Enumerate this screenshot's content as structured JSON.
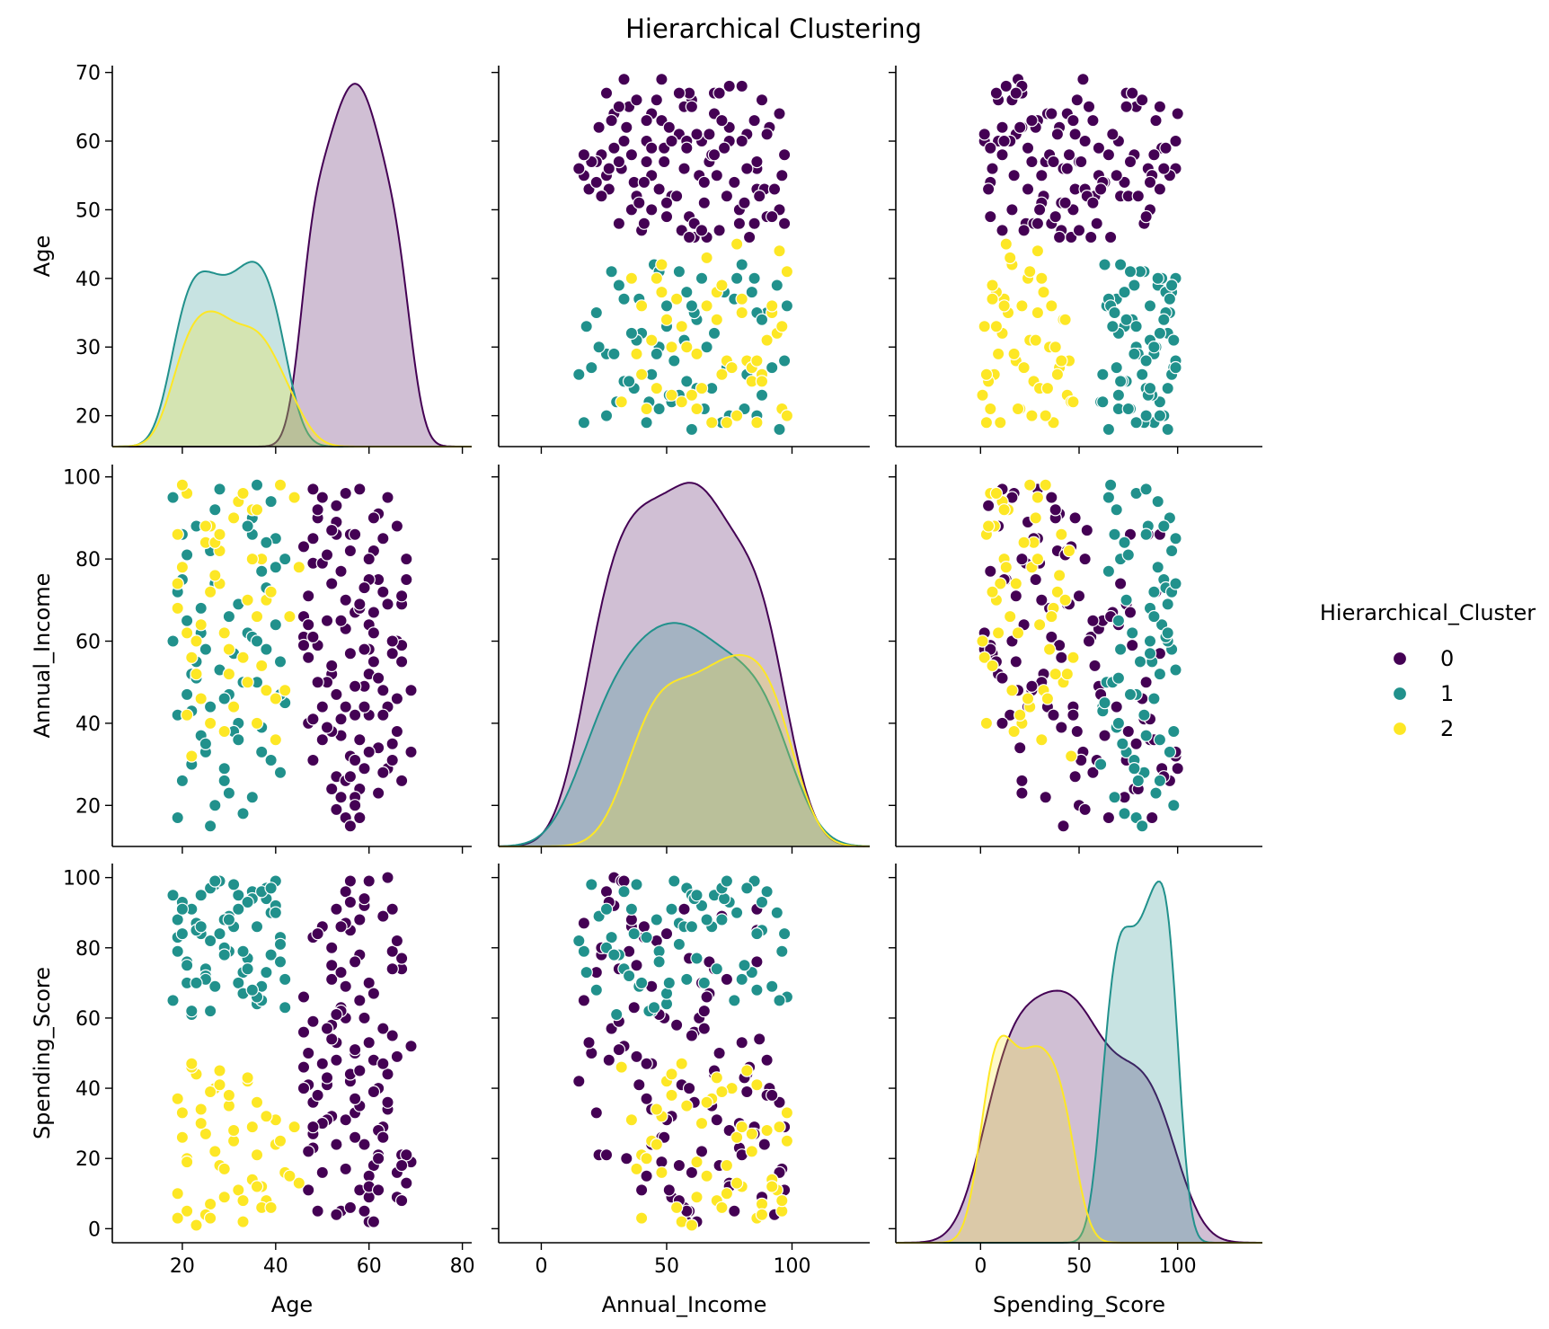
{
  "chart_data": {
    "type": "pairplot",
    "title": "Hierarchical Clustering",
    "variables": [
      "Age",
      "Annual_Income",
      "Spending_Score"
    ],
    "axes": {
      "Age": {
        "label": "Age",
        "x_range": [
          5,
          82
        ],
        "y_range": [
          15.5,
          71
        ],
        "x_ticks": [
          20,
          40,
          60,
          80
        ],
        "y_ticks": [
          20,
          30,
          40,
          50,
          60,
          70
        ]
      },
      "Annual_Income": {
        "label": "Annual_Income",
        "x_range": [
          -17,
          131
        ],
        "y_range": [
          10,
          103
        ],
        "x_ticks": [
          0,
          50,
          100
        ],
        "y_ticks": [
          20,
          40,
          60,
          80,
          100
        ]
      },
      "Spending_Score": {
        "label": "Spending_Score",
        "x_range": [
          -43,
          143
        ],
        "y_range": [
          -4,
          104
        ],
        "x_ticks": [
          0,
          50,
          100
        ],
        "y_ticks": [
          0,
          20,
          40,
          60,
          80,
          100
        ]
      }
    },
    "diag_type": "kde",
    "offdiag_type": "scatter",
    "grid": false,
    "legend": {
      "title": "Hierarchical_Cluster",
      "placement": "right-center"
    },
    "series": [
      {
        "name": "0",
        "color": "#440154",
        "points": [
          [
            55,
            96,
            17
          ],
          [
            56,
            86,
            85
          ],
          [
            54,
            37,
            63
          ],
          [
            61,
            55,
            18
          ],
          [
            67,
            69,
            74
          ],
          [
            63,
            85,
            29
          ],
          [
            48,
            79,
            23
          ],
          [
            52,
            74,
            71
          ],
          [
            60,
            64,
            70
          ],
          [
            64,
            29,
            100
          ],
          [
            49,
            59,
            5
          ],
          [
            58,
            97,
            11
          ],
          [
            62,
            23,
            21
          ],
          [
            57,
            67,
            76
          ],
          [
            47,
            56,
            41
          ],
          [
            66,
            60,
            16
          ],
          [
            50,
            44,
            47
          ],
          [
            53,
            27,
            48
          ],
          [
            56,
            32,
            99
          ],
          [
            58,
            24,
            78
          ],
          [
            68,
            75,
            13
          ],
          [
            55,
            17,
            87
          ],
          [
            52,
            52,
            32
          ],
          [
            60,
            42,
            15
          ],
          [
            65,
            57,
            91
          ],
          [
            59,
            49,
            60
          ],
          [
            67,
            26,
            21
          ],
          [
            57,
            22,
            33
          ],
          [
            61,
            67,
            67
          ],
          [
            53,
            86,
            91
          ],
          [
            47,
            40,
            11
          ],
          [
            51,
            50,
            31
          ],
          [
            46,
            83,
            46
          ],
          [
            64,
            69,
            44
          ],
          [
            69,
            33,
            52
          ],
          [
            62,
            91,
            40
          ],
          [
            56,
            15,
            42
          ],
          [
            48,
            85,
            27
          ],
          [
            52,
            38,
            75
          ],
          [
            59,
            44,
            24
          ],
          [
            46,
            61,
            56
          ],
          [
            69,
            48,
            19
          ],
          [
            60,
            58,
            2
          ],
          [
            54,
            77,
            5
          ],
          [
            50,
            36,
            86
          ],
          [
            63,
            28,
            57
          ],
          [
            58,
            68,
            35
          ],
          [
            66,
            88,
            9
          ],
          [
            55,
            63,
            60
          ],
          [
            48,
            41,
            83
          ],
          [
            57,
            20,
            50
          ],
          [
            61,
            82,
            39
          ],
          [
            53,
            19,
            53
          ],
          [
            67,
            59,
            77
          ],
          [
            50,
            95,
            16
          ],
          [
            64,
            44,
            34
          ],
          [
            47,
            71,
            50
          ],
          [
            59,
            29,
            92
          ],
          [
            56,
            82,
            44
          ],
          [
            62,
            75,
            28
          ],
          [
            49,
            90,
            38
          ],
          [
            65,
            35,
            79
          ],
          [
            54,
            65,
            62
          ],
          [
            57,
            31,
            51
          ],
          [
            60,
            52,
            9
          ],
          [
            52,
            54,
            58
          ],
          [
            68,
            80,
            21
          ],
          [
            51,
            39,
            41
          ],
          [
            63,
            72,
            89
          ],
          [
            48,
            61,
            36
          ],
          [
            55,
            26,
            96
          ],
          [
            58,
            69,
            45
          ],
          [
            62,
            34,
            20
          ],
          [
            46,
            66,
            66
          ],
          [
            53,
            89,
            24
          ],
          [
            66,
            46,
            82
          ],
          [
            60,
            75,
            12
          ],
          [
            57,
            42,
            37
          ],
          [
            49,
            50,
            84
          ],
          [
            65,
            60,
            55
          ],
          [
            54,
            22,
            73
          ],
          [
            61,
            90,
            48
          ],
          [
            58,
            36,
            88
          ],
          [
            50,
            79,
            30
          ],
          [
            52,
            87,
            54
          ],
          [
            56,
            57,
            6
          ],
          [
            63,
            48,
            26
          ],
          [
            59,
            73,
            94
          ],
          [
            48,
            31,
            59
          ],
          [
            67,
            55,
            8
          ],
          [
            55,
            44,
            69
          ],
          [
            51,
            81,
            43
          ],
          [
            64,
            95,
            36
          ],
          [
            47,
            64,
            22
          ],
          [
            53,
            47,
            61
          ],
          [
            60,
            33,
            99
          ],
          [
            57,
            86,
            76
          ],
          [
            46,
            59,
            40
          ],
          [
            62,
            51,
            11
          ],
          [
            66,
            38,
            49
          ],
          [
            54,
            41,
            86
          ],
          [
            49,
            92,
            38
          ],
          [
            58,
            17,
            65
          ],
          [
            61,
            62,
            2
          ],
          [
            55,
            70,
            31
          ],
          [
            52,
            24,
            80
          ],
          [
            60,
            80,
            53
          ],
          [
            48,
            97,
            29
          ],
          [
            63,
            42,
            47
          ],
          [
            67,
            71,
            18
          ],
          [
            56,
            27,
            93
          ],
          [
            59,
            58,
            5
          ],
          [
            51,
            65,
            57
          ],
          [
            65,
            31,
            74
          ],
          [
            53,
            93,
            4
          ],
          [
            57,
            49,
            26
          ]
        ]
      },
      {
        "name": "1",
        "color": "#21918c",
        "points": [
          [
            22,
            52,
            91
          ],
          [
            38,
            58,
            97
          ],
          [
            25,
            33,
            74
          ],
          [
            19,
            72,
            88
          ],
          [
            41,
            28,
            83
          ],
          [
            30,
            47,
            79
          ],
          [
            35,
            90,
            96
          ],
          [
            21,
            65,
            70
          ],
          [
            33,
            18,
            73
          ],
          [
            40,
            85,
            99
          ],
          [
            26,
            44,
            62
          ],
          [
            23,
            55,
            87
          ],
          [
            37,
            39,
            69
          ],
          [
            32,
            69,
            95
          ],
          [
            29,
            26,
            80
          ],
          [
            20,
            75,
            93
          ],
          [
            36,
            50,
            64
          ],
          [
            39,
            94,
            90
          ],
          [
            24,
            37,
            84
          ],
          [
            34,
            62,
            77
          ],
          [
            27,
            20,
            98
          ],
          [
            42,
            80,
            71
          ],
          [
            31,
            57,
            86
          ],
          [
            22,
            30,
            61
          ],
          [
            38,
            73,
            94
          ],
          [
            19,
            42,
            83
          ],
          [
            35,
            86,
            68
          ],
          [
            28,
            53,
            99
          ],
          [
            33,
            96,
            79
          ],
          [
            25,
            35,
            72
          ],
          [
            40,
            64,
            92
          ],
          [
            21,
            47,
            76
          ],
          [
            37,
            77,
            65
          ],
          [
            30,
            23,
            89
          ],
          [
            26,
            82,
            97
          ],
          [
            32,
            40,
            70
          ],
          [
            23,
            88,
            85
          ],
          [
            39,
            31,
            78
          ],
          [
            18,
            60,
            95
          ],
          [
            36,
            98,
            66
          ],
          [
            29,
            46,
            88
          ],
          [
            34,
            70,
            74
          ],
          [
            20,
            26,
            91
          ],
          [
            41,
            55,
            81
          ],
          [
            27,
            92,
            69
          ],
          [
            31,
            38,
            98
          ],
          [
            24,
            68,
            86
          ],
          [
            38,
            84,
            73
          ],
          [
            22,
            43,
            62
          ],
          [
            35,
            61,
            94
          ],
          [
            19,
            17,
            79
          ],
          [
            33,
            50,
            67
          ],
          [
            40,
            78,
            90
          ],
          [
            28,
            97,
            84
          ],
          [
            25,
            58,
            71
          ],
          [
            37,
            33,
            96
          ],
          [
            21,
            81,
            75
          ],
          [
            30,
            66,
            88
          ],
          [
            42,
            45,
            63
          ],
          [
            26,
            15,
            82
          ],
          [
            34,
            88,
            93
          ],
          [
            23,
            51,
            70
          ],
          [
            39,
            72,
            97
          ],
          [
            29,
            29,
            78
          ],
          [
            36,
            60,
            86
          ],
          [
            18,
            95,
            65
          ],
          [
            32,
            36,
            91
          ],
          [
            27,
            74,
            99
          ],
          [
            41,
            47,
            76
          ],
          [
            20,
            86,
            84
          ],
          [
            35,
            22,
            68
          ],
          [
            24,
            62,
            95
          ]
        ]
      },
      {
        "name": "2",
        "color": "#fde725",
        "points": [
          [
            21,
            96,
            5
          ],
          [
            34,
            50,
            42
          ],
          [
            28,
            74,
            18
          ],
          [
            40,
            36,
            31
          ],
          [
            26,
            88,
            7
          ],
          [
            31,
            44,
            25
          ],
          [
            19,
            68,
            37
          ],
          [
            37,
            80,
            12
          ],
          [
            23,
            52,
            44
          ],
          [
            44,
            95,
            29
          ],
          [
            29,
            62,
            9
          ],
          [
            36,
            40,
            21
          ],
          [
            20,
            98,
            33
          ],
          [
            33,
            56,
            2
          ],
          [
            27,
            76,
            40
          ],
          [
            42,
            48,
            16
          ],
          [
            25,
            84,
            27
          ],
          [
            38,
            70,
            8
          ],
          [
            22,
            32,
            46
          ],
          [
            35,
            92,
            14
          ],
          [
            30,
            58,
            35
          ],
          [
            19,
            86,
            3
          ],
          [
            40,
            46,
            24
          ],
          [
            26,
            72,
            39
          ],
          [
            32,
            94,
            11
          ],
          [
            24,
            64,
            30
          ],
          [
            37,
            54,
            6
          ],
          [
            28,
            82,
            45
          ],
          [
            21,
            42,
            20
          ],
          [
            45,
            78,
            13
          ],
          [
            31,
            90,
            28
          ],
          [
            23,
            60,
            1
          ],
          [
            36,
            66,
            36
          ],
          [
            29,
            38,
            17
          ],
          [
            41,
            98,
            25
          ],
          [
            19,
            74,
            10
          ],
          [
            34,
            70,
            43
          ],
          [
            25,
            88,
            4
          ],
          [
            38,
            48,
            32
          ],
          [
            27,
            84,
            22
          ],
          [
            22,
            56,
            47
          ],
          [
            33,
            96,
            8
          ],
          [
            43,
            66,
            15
          ],
          [
            30,
            52,
            38
          ],
          [
            20,
            78,
            26
          ],
          [
            36,
            92,
            12
          ],
          [
            24,
            46,
            34
          ],
          [
            39,
            72,
            6
          ],
          [
            28,
            86,
            41
          ],
          [
            21,
            62,
            19
          ],
          [
            35,
            80,
            29
          ],
          [
            26,
            40,
            3
          ]
        ]
      }
    ]
  }
}
